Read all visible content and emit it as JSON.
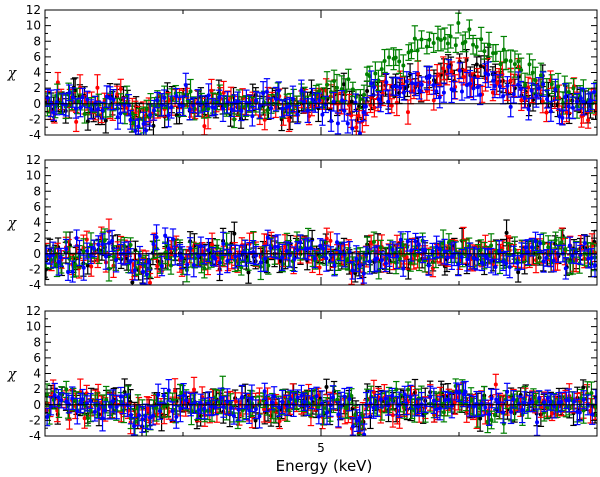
{
  "chart_data": [
    {
      "type": "scatter",
      "panel": "top",
      "ylabel": "χ",
      "xlabel": "",
      "xlim": [
        3.0,
        7.0
      ],
      "ylim": [
        -4,
        12
      ],
      "yticks": [
        "-4",
        "-2",
        "0",
        "2",
        "4",
        "6",
        "8",
        "10",
        "12"
      ],
      "xtick_label": "5",
      "series": [
        {
          "name": "black",
          "color": "#000000",
          "shape": "noise",
          "peak": 4.2,
          "peak_center": 6.0,
          "peak_width": 0.35,
          "noise": 1.1
        },
        {
          "name": "red",
          "color": "#ff0000",
          "shape": "noise",
          "peak": 3.6,
          "peak_center": 6.05,
          "peak_width": 0.33,
          "noise": 1.1
        },
        {
          "name": "green",
          "color": "#008000",
          "shape": "noise",
          "peak": 8.5,
          "peak_center": 5.95,
          "peak_width": 0.45,
          "noise": 0.9
        },
        {
          "name": "blue",
          "color": "#0000ff",
          "shape": "noise",
          "peak": 2.8,
          "peak_center": 6.0,
          "peak_width": 0.32,
          "noise": 1.2
        }
      ]
    },
    {
      "type": "scatter",
      "panel": "middle",
      "ylabel": "χ",
      "xlabel": "",
      "xlim": [
        3.0,
        7.0
      ],
      "ylim": [
        -4,
        12
      ],
      "yticks": [
        "-4",
        "-2",
        "0",
        "2",
        "4",
        "6",
        "8",
        "10",
        "12"
      ],
      "xtick_label": "5",
      "series": [
        {
          "name": "black",
          "color": "#000000",
          "shape": "noise",
          "peak": 0,
          "peak_center": 6.0,
          "peak_width": 0.3,
          "noise": 1.0
        },
        {
          "name": "red",
          "color": "#ff0000",
          "shape": "noise",
          "peak": 0,
          "peak_center": 6.0,
          "peak_width": 0.3,
          "noise": 1.0
        },
        {
          "name": "green",
          "color": "#008000",
          "shape": "noise",
          "peak": 0,
          "peak_center": 6.0,
          "peak_width": 0.3,
          "noise": 1.0
        },
        {
          "name": "blue",
          "color": "#0000ff",
          "shape": "noise",
          "peak": 0,
          "peak_center": 6.0,
          "peak_width": 0.3,
          "noise": 1.0
        }
      ]
    },
    {
      "type": "scatter",
      "panel": "bottom",
      "ylabel": "χ",
      "xlabel": "Energy (keV)",
      "xlim": [
        3.0,
        7.0
      ],
      "ylim": [
        -4,
        12
      ],
      "yticks": [
        "-4",
        "-2",
        "0",
        "2",
        "4",
        "6",
        "8",
        "10",
        "12"
      ],
      "xtick_label": "5",
      "series": [
        {
          "name": "black",
          "color": "#000000",
          "shape": "noise",
          "peak": 0,
          "peak_center": 6.0,
          "peak_width": 0.3,
          "noise": 1.0
        },
        {
          "name": "red",
          "color": "#ff0000",
          "shape": "noise",
          "peak": 0,
          "peak_center": 6.0,
          "peak_width": 0.3,
          "noise": 1.0
        },
        {
          "name": "green",
          "color": "#008000",
          "shape": "noise",
          "peak": 0,
          "peak_center": 6.0,
          "peak_width": 0.3,
          "noise": 1.0
        },
        {
          "name": "blue",
          "color": "#0000ff",
          "shape": "noise",
          "peak": 0,
          "peak_center": 6.0,
          "peak_width": 0.3,
          "noise": 1.0
        }
      ]
    }
  ]
}
